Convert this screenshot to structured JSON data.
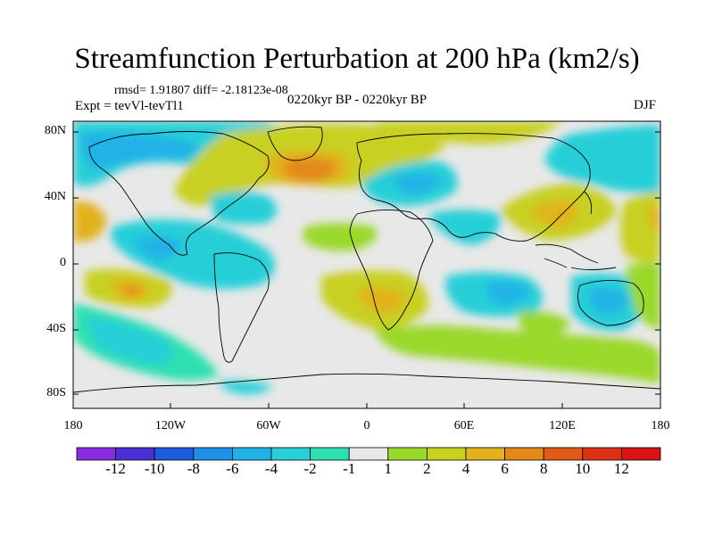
{
  "title": "Streamfunction Perturbation at 200 hPa (km2/s)",
  "stats": "rmsd= 1.91807 diff= -2.18123e-08",
  "experiment": "Expt = tevVl-tevTl1",
  "period": "0220kyr BP - 0220kyr BP",
  "season": "DJF",
  "lat_ticks": [
    "80N",
    "40N",
    "0",
    "40S",
    "80S"
  ],
  "lon_ticks": [
    "180",
    "120W",
    "60W",
    "0",
    "60E",
    "120E",
    "180"
  ],
  "colorbar": {
    "labels": [
      "-12",
      "-10",
      "-8",
      "-6",
      "-4",
      "-2",
      "-1",
      "1",
      "2",
      "4",
      "6",
      "8",
      "10",
      "12"
    ],
    "colors": [
      "#8a2be2",
      "#4b2fd6",
      "#1f5be0",
      "#1e90e8",
      "#20b2e6",
      "#28cfd8",
      "#2ee0b0",
      "#e8e8e8",
      "#9ad82a",
      "#c8d020",
      "#e2b21c",
      "#e4881a",
      "#e25a18",
      "#de3016",
      "#d81414"
    ]
  }
}
